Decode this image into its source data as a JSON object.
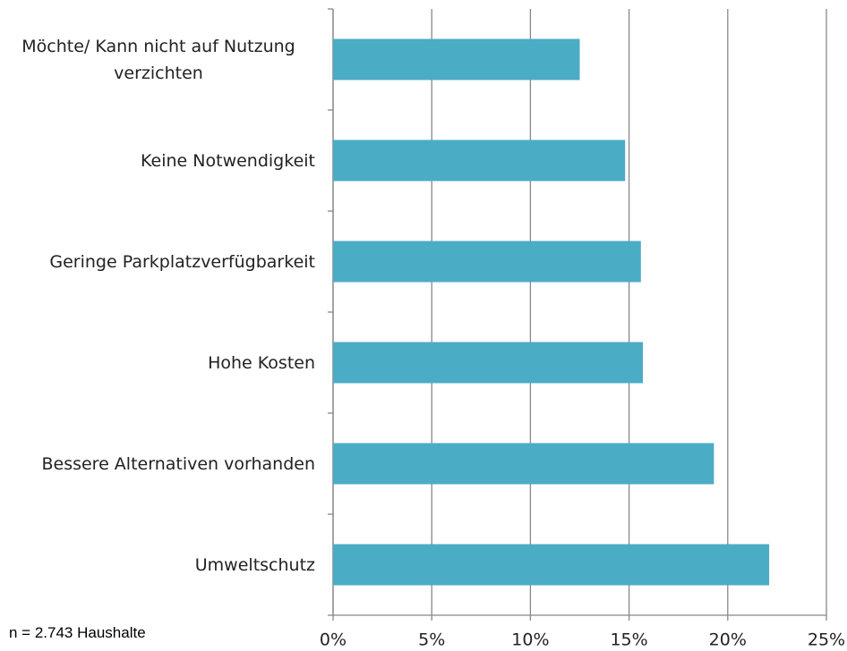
{
  "chart_data": {
    "type": "bar",
    "orientation": "horizontal",
    "categories": [
      "Möchte/ Kann nicht auf Nutzung verzichten",
      "Keine Notwendigkeit",
      "Geringe Parkplatzverfügbarkeit",
      "Hohe Kosten",
      "Bessere Alternativen vorhanden",
      "Umweltschutz"
    ],
    "values": [
      12.5,
      14.8,
      15.6,
      15.7,
      19.3,
      22.1
    ],
    "color": "#4bacc6",
    "xlim": [
      0,
      25
    ],
    "xticks": [
      {
        "value": 0,
        "label": "0%"
      },
      {
        "value": 5,
        "label": "5%"
      },
      {
        "value": 10,
        "label": "10%"
      },
      {
        "value": 15,
        "label": "15%"
      },
      {
        "value": 20,
        "label": "20%"
      },
      {
        "value": 25,
        "label": "25%"
      }
    ],
    "grid": true,
    "note": "n = 2.743 Haushalte"
  }
}
